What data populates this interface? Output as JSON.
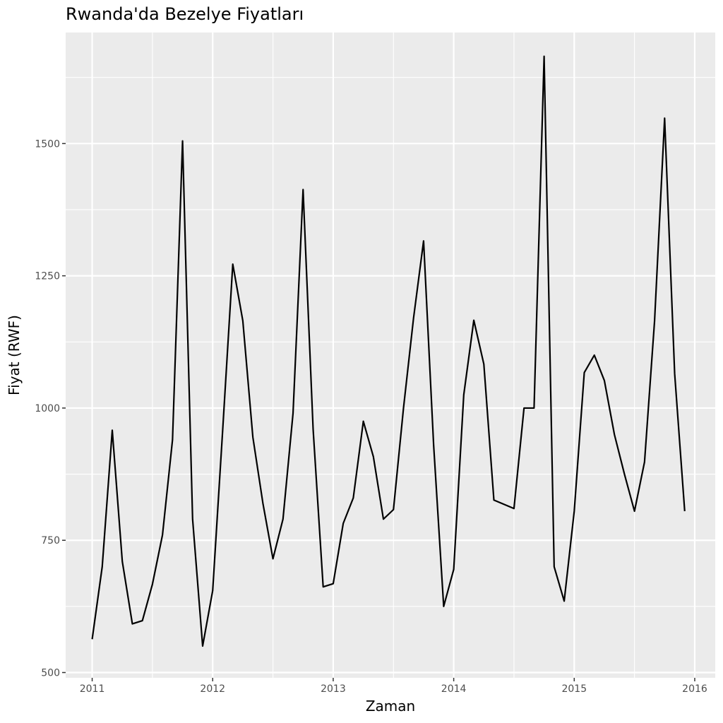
{
  "chart_data": {
    "type": "line",
    "title": "Rwanda'da Bezelye Fiyatları",
    "xlabel": "Zaman",
    "ylabel": "Fiyat (RWF)",
    "x_ticks": [
      "2011",
      "2012",
      "2013",
      "2014",
      "2015",
      "2016"
    ],
    "y_ticks": [
      500,
      750,
      1000,
      1250,
      1500
    ],
    "xlim": [
      2010.78,
      2016.17
    ],
    "ylim": [
      490,
      1710
    ],
    "grid": true,
    "series": [
      {
        "name": "",
        "color": "#000000",
        "x": [
          "2011-01",
          "2011-02",
          "2011-03",
          "2011-04",
          "2011-05",
          "2011-06",
          "2011-07",
          "2011-08",
          "2011-09",
          "2011-10",
          "2011-11",
          "2011-12",
          "2012-01",
          "2012-02",
          "2012-03",
          "2012-04",
          "2012-05",
          "2012-06",
          "2012-07",
          "2012-08",
          "2012-09",
          "2012-10",
          "2012-11",
          "2012-12",
          "2013-01",
          "2013-02",
          "2013-03",
          "2013-04",
          "2013-05",
          "2013-06",
          "2013-07",
          "2013-08",
          "2013-09",
          "2013-10",
          "2013-11",
          "2013-12",
          "2014-01",
          "2014-02",
          "2014-03",
          "2014-04",
          "2014-05",
          "2014-06",
          "2014-07",
          "2014-08",
          "2014-09",
          "2014-10",
          "2014-11",
          "2014-12",
          "2015-01",
          "2015-02",
          "2015-03",
          "2015-04",
          "2015-05",
          "2015-06",
          "2015-07",
          "2015-08",
          "2015-09",
          "2015-10",
          "2015-11",
          "2015-12"
        ],
        "values": [
          563,
          700,
          958,
          710,
          592,
          598,
          667,
          760,
          940,
          1505,
          790,
          550,
          655,
          960,
          1272,
          1165,
          945,
          820,
          715,
          790,
          990,
          1413,
          960,
          662,
          668,
          782,
          830,
          975,
          908,
          790,
          808,
          1000,
          1170,
          1316,
          930,
          625,
          695,
          1025,
          1166,
          1083,
          826,
          818,
          810,
          1000,
          1000,
          1665,
          700,
          635,
          805,
          1067,
          1100,
          1052,
          950,
          875,
          805,
          898,
          1165,
          1548,
          1065,
          805
        ]
      }
    ]
  }
}
